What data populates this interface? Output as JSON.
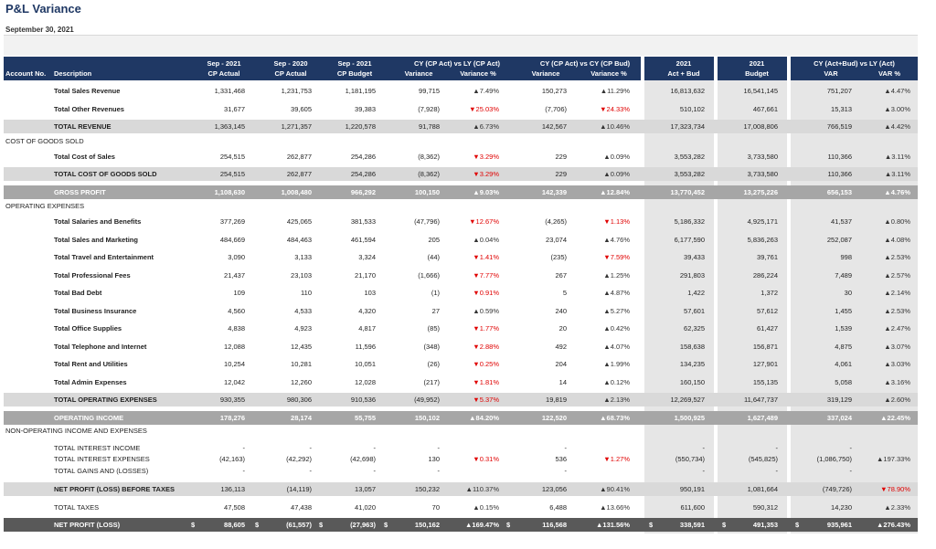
{
  "report": {
    "title": "P&L Variance",
    "date": "September 30, 2021"
  },
  "header": {
    "account_no": "Account No.",
    "description": "Description",
    "cols": [
      {
        "l1": "Sep - 2021",
        "l2": "CP Actual"
      },
      {
        "l1": "Sep - 2020",
        "l2": "CP Actual"
      },
      {
        "l1": "Sep - 2021",
        "l2": "CP Budget"
      },
      {
        "l1": "",
        "l2": "Variance"
      },
      {
        "l1": "",
        "l2": "Variance %"
      },
      {
        "l1": "",
        "l2": "Variance"
      },
      {
        "l1": "",
        "l2": "Variance %"
      },
      {
        "l1": "2021",
        "l2": "Act + Bud"
      },
      {
        "l1": "2021",
        "l2": "Budget"
      },
      {
        "l1": "",
        "l2": "VAR"
      },
      {
        "l1": "",
        "l2": "VAR %"
      }
    ],
    "group1": "CY (CP Act) vs LY (CP Act)",
    "group2": "CY (CP Act) vs CY (CP Bud)",
    "group3": "CY (Act+Bud) vs LY (Act)"
  },
  "sections": {
    "cogs": "COST OF GOODS SOLD",
    "opex": "OPERATING EXPENSES",
    "nonop": "NON-OPERATING INCOME AND EXPENSES"
  },
  "currency_symbol": "$",
  "rows": [
    {
      "desc": "Total Sales Revenue",
      "style": "bold",
      "v": [
        "1,331,468",
        "1,231,753",
        "1,181,195",
        "99,715",
        "▲7.49%",
        "150,273",
        "▲11.29%",
        "16,813,632",
        "16,541,145",
        "751,207",
        "▲4.47%"
      ]
    },
    {
      "desc": "Total Other Revenues",
      "style": "bold",
      "v": [
        "31,677",
        "39,605",
        "39,383",
        "(7,928)",
        "▼25.03%",
        "(7,706)",
        "▼24.33%",
        "510,102",
        "467,661",
        "15,313",
        "▲3.00%"
      ]
    },
    {
      "desc": "TOTAL REVENUE",
      "style": "total",
      "v": [
        "1,363,145",
        "1,271,357",
        "1,220,578",
        "91,788",
        "▲6.73%",
        "142,567",
        "▲10.46%",
        "17,323,734",
        "17,008,806",
        "766,519",
        "▲4.42%"
      ]
    },
    {
      "desc": "Total Cost of Sales",
      "style": "bold",
      "v": [
        "254,515",
        "262,877",
        "254,286",
        "(8,362)",
        "▼3.29%",
        "229",
        "▲0.09%",
        "3,553,282",
        "3,733,580",
        "110,366",
        "▲3.11%"
      ]
    },
    {
      "desc": "TOTAL COST OF GOODS SOLD",
      "style": "total",
      "v": [
        "254,515",
        "262,877",
        "254,286",
        "(8,362)",
        "▼3.29%",
        "229",
        "▲0.09%",
        "3,553,282",
        "3,733,580",
        "110,366",
        "▲3.11%"
      ]
    },
    {
      "desc": "GROSS PROFIT",
      "style": "grey",
      "v": [
        "1,108,630",
        "1,008,480",
        "966,292",
        "100,150",
        "▲9.03%",
        "142,339",
        "▲12.84%",
        "13,770,452",
        "13,275,226",
        "656,153",
        "▲4.76%"
      ]
    },
    {
      "desc": "Total Salaries and Benefits",
      "style": "bold",
      "v": [
        "377,269",
        "425,065",
        "381,533",
        "(47,796)",
        "▼12.67%",
        "(4,265)",
        "▼1.13%",
        "5,186,332",
        "4,925,171",
        "41,537",
        "▲0.80%"
      ]
    },
    {
      "desc": "Total Sales and Marketing",
      "style": "bold",
      "v": [
        "484,669",
        "484,463",
        "461,594",
        "205",
        "▲0.04%",
        "23,074",
        "▲4.76%",
        "6,177,590",
        "5,836,263",
        "252,087",
        "▲4.08%"
      ]
    },
    {
      "desc": "Total Travel and Entertainment",
      "style": "bold",
      "v": [
        "3,090",
        "3,133",
        "3,324",
        "(44)",
        "▼1.41%",
        "(235)",
        "▼7.59%",
        "39,433",
        "39,761",
        "998",
        "▲2.53%"
      ]
    },
    {
      "desc": "Total Professional Fees",
      "style": "bold",
      "v": [
        "21,437",
        "23,103",
        "21,170",
        "(1,666)",
        "▼7.77%",
        "267",
        "▲1.25%",
        "291,803",
        "286,224",
        "7,489",
        "▲2.57%"
      ]
    },
    {
      "desc": "Total Bad Debt",
      "style": "bold",
      "v": [
        "109",
        "110",
        "103",
        "(1)",
        "▼0.91%",
        "5",
        "▲4.87%",
        "1,422",
        "1,372",
        "30",
        "▲2.14%"
      ]
    },
    {
      "desc": "Total Business Insurance",
      "style": "bold",
      "v": [
        "4,560",
        "4,533",
        "4,320",
        "27",
        "▲0.59%",
        "240",
        "▲5.27%",
        "57,601",
        "57,612",
        "1,455",
        "▲2.53%"
      ]
    },
    {
      "desc": "Total Office Supplies",
      "style": "bold",
      "v": [
        "4,838",
        "4,923",
        "4,817",
        "(85)",
        "▼1.77%",
        "20",
        "▲0.42%",
        "62,325",
        "61,427",
        "1,539",
        "▲2.47%"
      ]
    },
    {
      "desc": "Total Telephone and Internet",
      "style": "bold",
      "v": [
        "12,088",
        "12,435",
        "11,596",
        "(348)",
        "▼2.88%",
        "492",
        "▲4.07%",
        "158,638",
        "156,871",
        "4,875",
        "▲3.07%"
      ]
    },
    {
      "desc": "Total Rent and Utilities",
      "style": "bold",
      "v": [
        "10,254",
        "10,281",
        "10,051",
        "(26)",
        "▼0.25%",
        "204",
        "▲1.99%",
        "134,235",
        "127,901",
        "4,061",
        "▲3.03%"
      ]
    },
    {
      "desc": "Total Admin Expenses",
      "style": "bold",
      "v": [
        "12,042",
        "12,260",
        "12,028",
        "(217)",
        "▼1.81%",
        "14",
        "▲0.12%",
        "160,150",
        "155,135",
        "5,058",
        "▲3.16%"
      ]
    },
    {
      "desc": "TOTAL OPERATING EXPENSES",
      "style": "total",
      "v": [
        "930,355",
        "980,306",
        "910,536",
        "(49,952)",
        "▼5.37%",
        "19,819",
        "▲2.13%",
        "12,269,527",
        "11,647,737",
        "319,129",
        "▲2.60%"
      ]
    },
    {
      "desc": "OPERATING INCOME",
      "style": "grey",
      "v": [
        "178,276",
        "28,174",
        "55,755",
        "150,102",
        "▲84.20%",
        "122,520",
        "▲68.73%",
        "1,500,925",
        "1,627,489",
        "337,024",
        "▲22.45%"
      ]
    },
    {
      "desc": "TOTAL INTEREST INCOME",
      "style": "plain",
      "v": [
        "-",
        "-",
        "-",
        "-",
        "",
        "-",
        "",
        "-",
        "-",
        "-",
        ""
      ]
    },
    {
      "desc": "TOTAL INTEREST EXPENSES",
      "style": "plain",
      "v": [
        "(42,163)",
        "(42,292)",
        "(42,698)",
        "130",
        "▼0.31%",
        "536",
        "▼1.27%",
        "(550,734)",
        "(545,825)",
        "(1,086,750)",
        "▲197.33%"
      ]
    },
    {
      "desc": "TOTAL GAINS AND (LOSSES)",
      "style": "plain",
      "v": [
        "-",
        "-",
        "-",
        "-",
        "",
        "-",
        "",
        "-",
        "-",
        "-",
        ""
      ]
    },
    {
      "desc": "NET PROFIT (LOSS) BEFORE TAXES",
      "style": "total",
      "v": [
        "136,113",
        "(14,119)",
        "13,057",
        "150,232",
        "▲110.37%",
        "123,056",
        "▲90.41%",
        "950,191",
        "1,081,664",
        "(749,726)",
        "▼78.90%"
      ]
    },
    {
      "desc": "TOTAL TAXES",
      "style": "plain",
      "v": [
        "47,508",
        "47,438",
        "41,020",
        "70",
        "▲0.15%",
        "6,488",
        "▲13.66%",
        "611,600",
        "590,312",
        "14,230",
        "▲2.33%"
      ]
    },
    {
      "desc": "NET PROFIT (LOSS)",
      "style": "dark",
      "v": [
        "88,605",
        "(61,557)",
        "(27,963)",
        "150,162",
        "▲169.47%",
        "116,568",
        "▲131.56%",
        "338,591",
        "491,353",
        "935,961",
        "▲276.43%"
      ]
    }
  ]
}
